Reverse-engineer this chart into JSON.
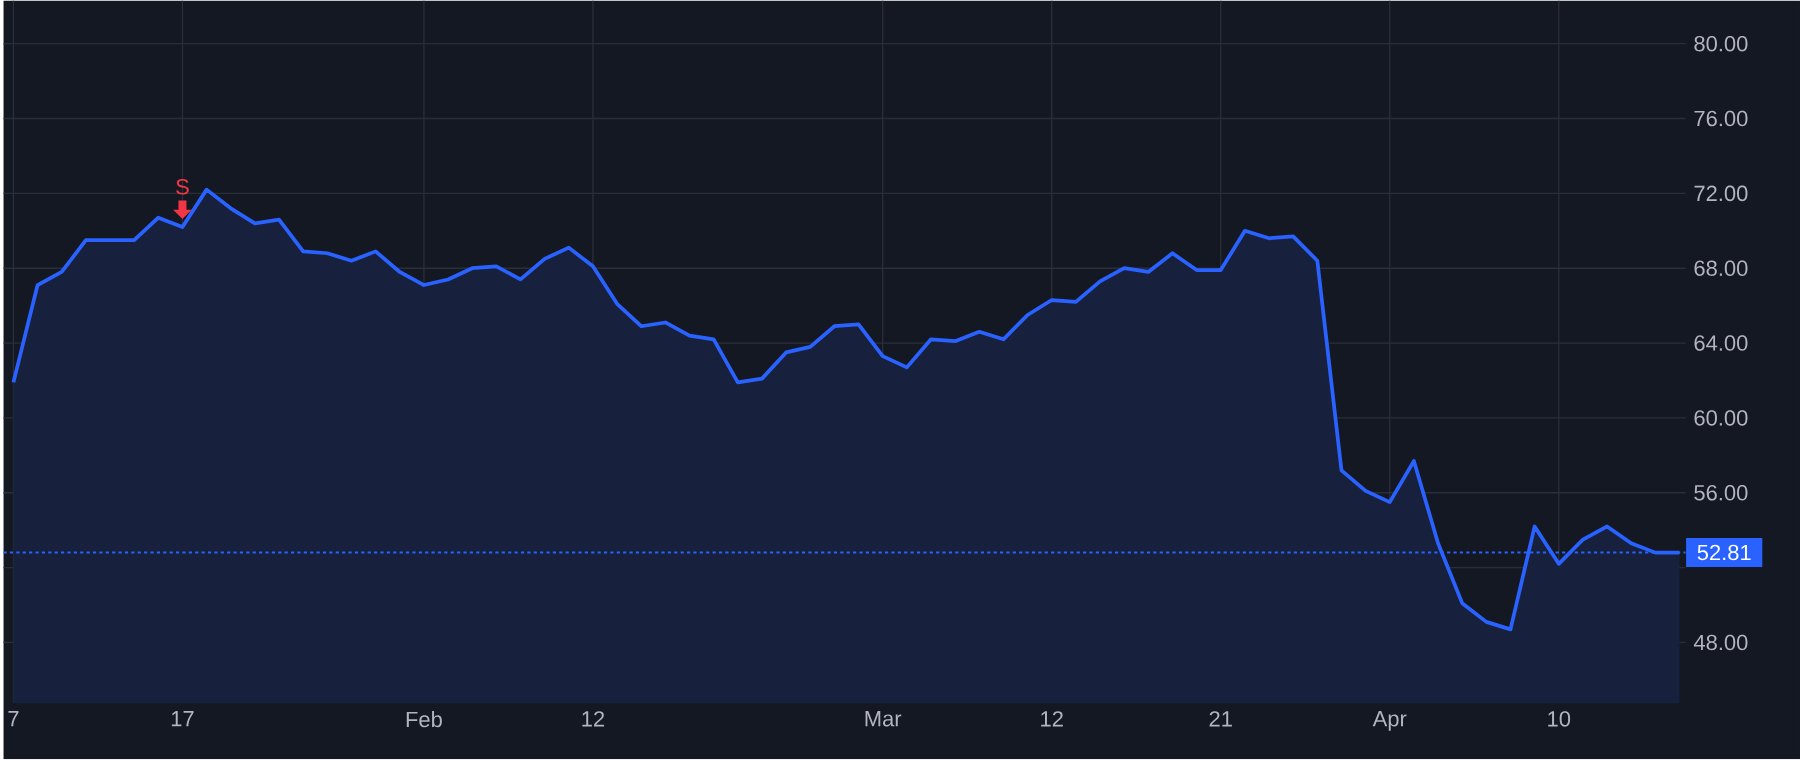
{
  "chart_data": {
    "type": "area",
    "categories": [
      "7",
      null,
      null,
      null,
      null,
      null,
      null,
      "17",
      null,
      null,
      null,
      null,
      null,
      null,
      null,
      null,
      null,
      "Feb",
      null,
      null,
      null,
      null,
      null,
      null,
      "12",
      null,
      null,
      null,
      null,
      null,
      null,
      null,
      null,
      null,
      null,
      null,
      "Mar",
      null,
      null,
      null,
      null,
      null,
      null,
      "12",
      null,
      null,
      null,
      null,
      null,
      null,
      "21",
      null,
      null,
      null,
      null,
      null,
      null,
      "Apr",
      null,
      null,
      null,
      null,
      null,
      null,
      "10",
      null,
      null,
      null,
      null,
      null
    ],
    "series": [
      {
        "color": "#2962ff",
        "values": [
          61.9,
          67.1,
          67.8,
          69.5,
          69.5,
          69.5,
          70.7,
          70.2,
          72.2,
          71.2,
          70.4,
          70.6,
          68.9,
          68.8,
          68.4,
          68.9,
          67.8,
          67.1,
          67.4,
          68.0,
          68.1,
          67.4,
          68.5,
          69.1,
          68.1,
          66.1,
          64.9,
          65.1,
          64.4,
          64.2,
          61.9,
          62.1,
          63.5,
          63.8,
          64.9,
          65.0,
          63.3,
          62.7,
          64.2,
          64.1,
          64.6,
          64.2,
          65.5,
          66.3,
          66.2,
          67.3,
          68.0,
          67.8,
          68.8,
          67.9,
          67.9,
          70.0,
          69.6,
          69.7,
          68.4,
          57.2,
          56.1,
          55.5,
          57.7,
          53.3,
          50.1,
          49.1,
          48.7,
          54.2,
          52.2,
          53.5,
          54.2,
          53.3,
          52.8,
          52.8
        ]
      }
    ],
    "ylim": [
      44.75,
      82.3
    ],
    "yticks": [
      {
        "value": 48,
        "label": "48.00"
      },
      {
        "value": 52,
        "label": null
      },
      {
        "value": 56,
        "label": "56.00"
      },
      {
        "value": 60,
        "label": "60.00"
      },
      {
        "value": 64,
        "label": "64.00"
      },
      {
        "value": 68,
        "label": "68.00"
      },
      {
        "value": 72,
        "label": "72.00"
      },
      {
        "value": 76,
        "label": "76.00"
      },
      {
        "value": 80,
        "label": "80.00"
      }
    ],
    "grid": true,
    "ref_lines": [
      {
        "axis": "y",
        "value": 52.81,
        "label": "52.81",
        "color": "#2962ff",
        "line_style": "dotted"
      }
    ],
    "annotations": [
      {
        "text": "S",
        "x": "17",
        "y": 70.2
      }
    ]
  }
}
